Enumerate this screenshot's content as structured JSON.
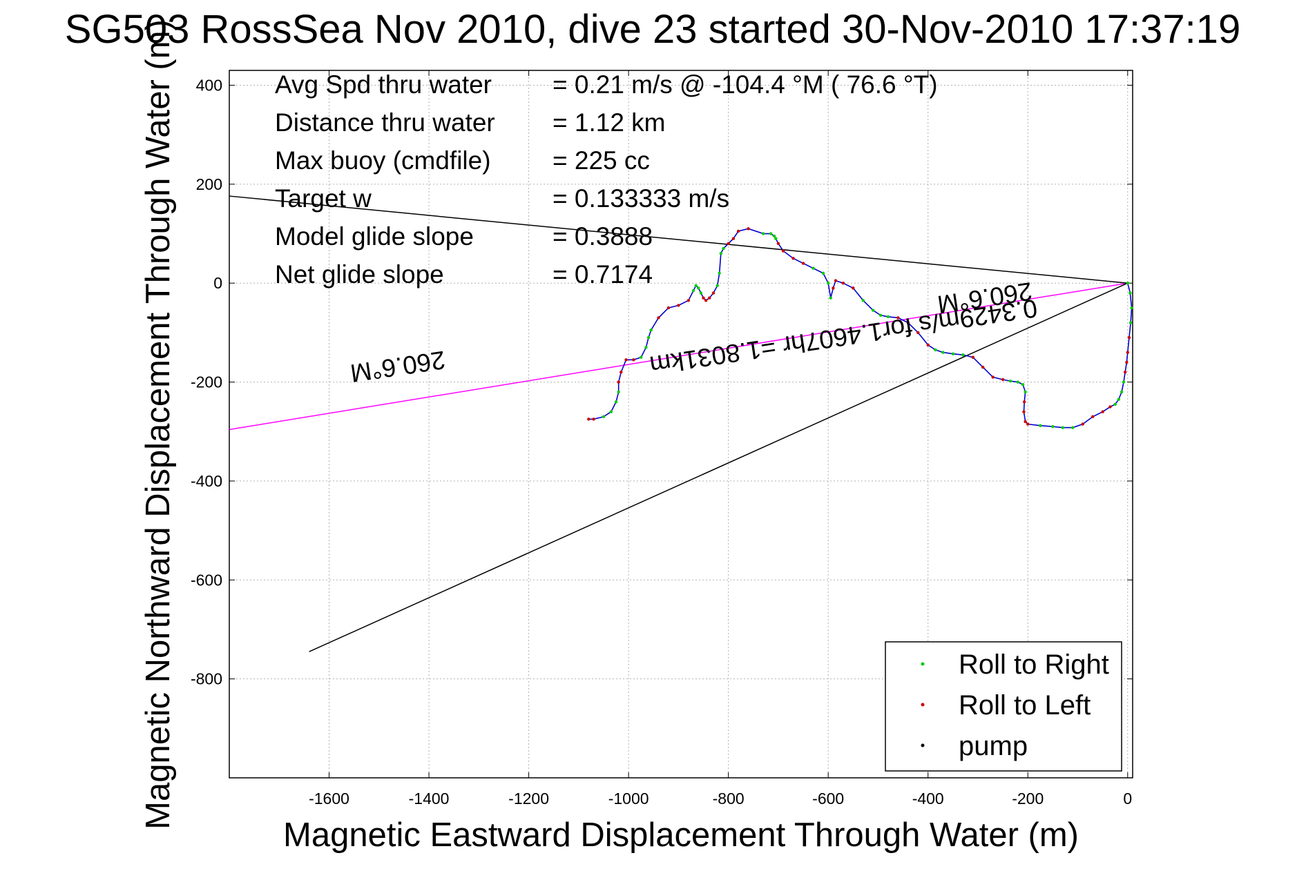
{
  "chart_data": {
    "type": "line",
    "title": "SG503 RossSea Nov 2010, dive 23 started 30-Nov-2010 17:37:19",
    "xlabel": "Magnetic Eastward Displacement Through Water (m)",
    "ylabel": "Magnetic Northward Displacement Through Water (m)",
    "xlim": [
      -1800,
      10
    ],
    "ylim": [
      -1000,
      430
    ],
    "grid": true,
    "x_ticks": [
      -1600,
      -1400,
      -1200,
      -1000,
      -800,
      -600,
      -400,
      -200,
      0
    ],
    "y_ticks": [
      400,
      200,
      0,
      -200,
      -400,
      -600,
      -800
    ],
    "annotations": [
      {
        "label": "Avg Spd thru water",
        "value": "=  0.21 m/s @ -104.4 °M ( 76.6 °T)"
      },
      {
        "label": "Distance thru water",
        "value": "=  1.12 km"
      },
      {
        "label": "Max buoy (cmdfile)",
        "value": "= 225 cc"
      },
      {
        "label": "Target w",
        "value": "= 0.133333 m/s"
      },
      {
        "label": "Model glide slope",
        "value": "= 0.3888"
      },
      {
        "label": "Net glide slope",
        "value": "= 0.7174"
      }
    ],
    "line_labels": {
      "heading_left": "260.6°M",
      "heading_right": "260.6°M",
      "speed": "0.3429m/s for1.4607hr =1.8031km"
    },
    "legend": {
      "placement": "bottom-right",
      "entries": [
        {
          "name": "Roll to Right",
          "color": "#00cc00"
        },
        {
          "name": "Roll to Left",
          "color": "#cc0000"
        },
        {
          "name": "pump",
          "color": "#000000"
        }
      ]
    },
    "reference_lines": [
      {
        "name": "heading",
        "color": "#ff00ff",
        "x": [
          0,
          -1800
        ],
        "y": [
          0,
          -296
        ]
      },
      {
        "name": "cone-upper",
        "color": "#000000",
        "x": [
          0,
          -1800
        ],
        "y": [
          0,
          176
        ]
      },
      {
        "name": "cone-lower",
        "color": "#000000",
        "x": [
          0,
          -1640
        ],
        "y": [
          0,
          -745
        ]
      }
    ],
    "track": {
      "color": "#0000cc",
      "x": [
        0,
        5,
        8,
        6,
        3,
        0,
        -2,
        -5,
        -8,
        -12,
        -18,
        -25,
        -35,
        -50,
        -70,
        -90,
        -110,
        -130,
        -150,
        -175,
        -200,
        -205,
        -208,
        -207,
        -205,
        -210,
        -220,
        -235,
        -250,
        -270,
        -290,
        -310,
        -330,
        -350,
        -370,
        -385,
        -400,
        -420,
        -440,
        -460,
        -480,
        -495,
        -510,
        -530,
        -550,
        -570,
        -585,
        -590,
        -595,
        -600,
        -610,
        -630,
        -650,
        -670,
        -690,
        -700,
        -705,
        -708,
        -715,
        -730,
        -760,
        -780,
        -790,
        -800,
        -810,
        -815,
        -818,
        -822,
        -830,
        -838,
        -845,
        -850,
        -855,
        -860,
        -865,
        -870,
        -880,
        -900,
        -920,
        -940,
        -955,
        -960,
        -965,
        -975,
        -990,
        -1005,
        -1015,
        -1020,
        -1020,
        -1025,
        -1035,
        -1050,
        -1070,
        -1080
      ],
      "y": [
        0,
        -20,
        -50,
        -80,
        -110,
        -140,
        -160,
        -180,
        -200,
        -220,
        -235,
        -245,
        -250,
        -260,
        -270,
        -285,
        -292,
        -292,
        -290,
        -288,
        -285,
        -280,
        -260,
        -240,
        -220,
        -205,
        -200,
        -198,
        -195,
        -190,
        -170,
        -150,
        -145,
        -143,
        -140,
        -135,
        -125,
        -100,
        -80,
        -70,
        -68,
        -65,
        -55,
        -35,
        -10,
        0,
        5,
        -10,
        -30,
        0,
        20,
        30,
        40,
        50,
        65,
        80,
        90,
        95,
        100,
        100,
        110,
        105,
        90,
        80,
        70,
        60,
        20,
        -5,
        -20,
        -30,
        -35,
        -30,
        -20,
        -10,
        -5,
        -15,
        -35,
        -45,
        -50,
        -70,
        -95,
        -110,
        -130,
        -150,
        -155,
        -155,
        -180,
        -200,
        -220,
        -240,
        -260,
        -270,
        -275,
        -275
      ]
    }
  }
}
